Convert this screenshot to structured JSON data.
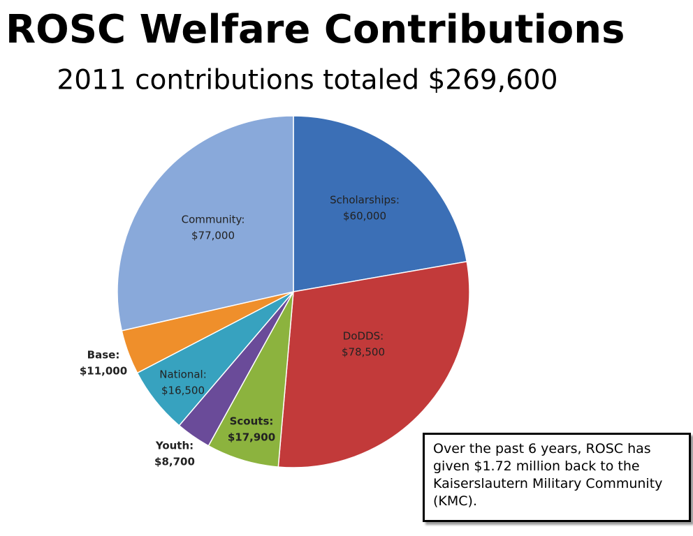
{
  "chart_data": {
    "type": "pie",
    "title": "ROSC Welfare Contributions",
    "subtitle": "2011  contributions totaled $269,600",
    "categories": [
      "Scholarships:",
      "DoDDS:",
      "Scouts:",
      "Youth:",
      "National:",
      "Base:",
      "Community:"
    ],
    "values": [
      60000,
      78500,
      17900,
      8700,
      16500,
      11000,
      77000
    ],
    "value_labels": [
      "$60,000",
      "$78,500",
      "$17,900",
      "$8,700",
      "$16,500",
      "$11,000",
      "$77,000"
    ],
    "colors": [
      "#3b6fb6",
      "#c23a3a",
      "#8cb33e",
      "#6a4b99",
      "#37a2bf",
      "#ef8f2b",
      "#89a9da"
    ],
    "annotation": "Over the past 6 years, ROSC has given $1.72 million back to the Kaiserslautern Military Community (KMC)."
  }
}
